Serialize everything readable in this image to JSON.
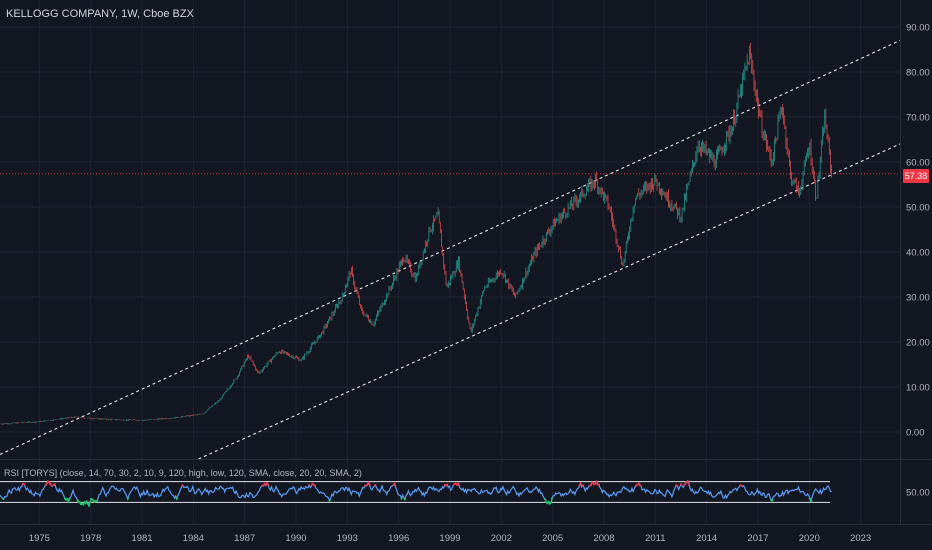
{
  "header": {
    "title": "KELLOGG COMPANY, 1W, Cboe BZX"
  },
  "indicator": {
    "label": "RSI [TORYS] (close, 14, 70, 30, 2, 10, 9, 120, high, low, 120, SMA, close, 20, 20, SMA, 2)"
  },
  "last_price": {
    "label": "57.38",
    "value": 57.38
  },
  "colors": {
    "background": "#131722",
    "grid": "#1f2433",
    "text": "#b2b5be",
    "up": "#26a69a",
    "down": "#ef5350",
    "price_line": "#f23645",
    "rsi_line": "#5b9cf6",
    "rsi_high": "#f23645",
    "rsi_low": "#22c55e"
  },
  "chart_data": [
    {
      "type": "candlestick",
      "title": "KELLOGG COMPANY, 1W, Cboe BZX",
      "y_ticks": [
        "90.00",
        "80.00",
        "70.00",
        "60.00",
        "50.00",
        "40.00",
        "30.00",
        "20.00",
        "10.00",
        "0.00"
      ],
      "x_ticks": [
        "1975",
        "1978",
        "1981",
        "1984",
        "1987",
        "1990",
        "1993",
        "1996",
        "1999",
        "2002",
        "2005",
        "2008",
        "2011",
        "2014",
        "2017",
        "2020",
        "2023"
      ],
      "xlim": [
        1972.7,
        2025.3
      ],
      "ylim": [
        -6,
        96
      ],
      "grid": true,
      "price_path": [
        [
          1972.7,
          1.8
        ],
        [
          1975,
          2.3
        ],
        [
          1977,
          3.3
        ],
        [
          1979,
          2.8
        ],
        [
          1981,
          2.6
        ],
        [
          1983,
          3.2
        ],
        [
          1984.5,
          4.0
        ],
        [
          1985.5,
          7.0
        ],
        [
          1986.5,
          12.0
        ],
        [
          1987.2,
          17.0
        ],
        [
          1987.8,
          13.0
        ],
        [
          1989,
          18.0
        ],
        [
          1990.3,
          16.0
        ],
        [
          1991.5,
          22.0
        ],
        [
          1992.7,
          30.0
        ],
        [
          1993.2,
          36.0
        ],
        [
          1993.8,
          27.0
        ],
        [
          1994.5,
          24.0
        ],
        [
          1995.5,
          32.0
        ],
        [
          1996.3,
          39.0
        ],
        [
          1997,
          34.0
        ],
        [
          1997.8,
          45.0
        ],
        [
          1998.3,
          48.0
        ],
        [
          1998.8,
          32.0
        ],
        [
          1999.5,
          38.0
        ],
        [
          2000.2,
          22.0
        ],
        [
          2001,
          32.0
        ],
        [
          2002,
          36.0
        ],
        [
          2002.8,
          30.0
        ],
        [
          2004,
          40.0
        ],
        [
          2005,
          46.0
        ],
        [
          2006,
          50.0
        ],
        [
          2007.5,
          56.0
        ],
        [
          2008.3,
          50.0
        ],
        [
          2009.1,
          37.0
        ],
        [
          2009.8,
          52.0
        ],
        [
          2011,
          56.0
        ],
        [
          2011.7,
          52.0
        ],
        [
          2012.5,
          48.0
        ],
        [
          2013.5,
          64.0
        ],
        [
          2014.5,
          60.0
        ],
        [
          2015.5,
          68.0
        ],
        [
          2016.5,
          84.0
        ],
        [
          2017.2,
          68.0
        ],
        [
          2017.8,
          60.0
        ],
        [
          2018.4,
          73.0
        ],
        [
          2018.9,
          57.0
        ],
        [
          2019.4,
          53.0
        ],
        [
          2020.0,
          64.0
        ],
        [
          2020.4,
          52.0
        ],
        [
          2020.9,
          70.0
        ],
        [
          2021.3,
          57.4
        ]
      ],
      "trend_lines": [
        {
          "points": [
            [
              1972.7,
              -5.0
            ],
            [
              2025.3,
              87.0
            ]
          ],
          "style": "dashed"
        },
        {
          "points": [
            [
              1984.3,
              -6.0
            ],
            [
              2025.3,
              64.0
            ]
          ],
          "style": "dashed"
        }
      ],
      "price_line": 57.38
    },
    {
      "type": "line",
      "title": "RSI [TORYS]",
      "y_ticks": [
        "50.00"
      ],
      "ylim": [
        0,
        100
      ],
      "bands": [
        70,
        30
      ],
      "series": [
        {
          "name": "RSI [TORYS]"
        }
      ]
    }
  ]
}
